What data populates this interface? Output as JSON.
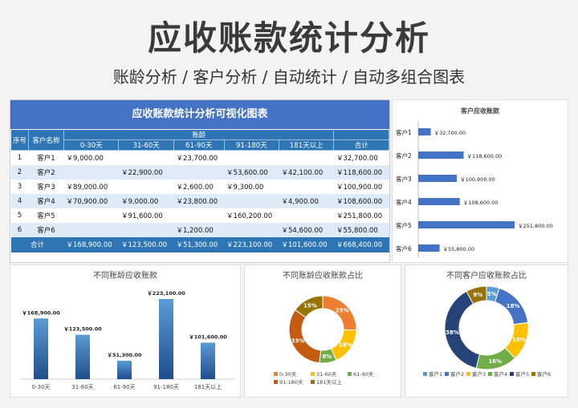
{
  "header": {
    "title": "应收账款统计分析",
    "subtitle": "账龄分析 / 客户分析 / 自动统计 / 自动多组合图表"
  },
  "table": {
    "title": "应收账款统计分析可视化图表",
    "col_seq": "序号",
    "col_customer": "客户名称",
    "group_label": "账龄",
    "age_headers": [
      "0-30天",
      "31-60天",
      "61-90天",
      "91-180天",
      "181天以上"
    ],
    "col_total": "合计",
    "rows": [
      {
        "seq": "1",
        "name": "客户1",
        "vals": [
          "￥9,000.00",
          "",
          "￥23,700.00",
          "",
          ""
        ],
        "total": "￥32,700.00"
      },
      {
        "seq": "2",
        "name": "客户2",
        "vals": [
          "",
          "￥22,900.00",
          "",
          "￥53,600.00",
          "￥42,100.00"
        ],
        "total": "￥118,600.00"
      },
      {
        "seq": "3",
        "name": "客户3",
        "vals": [
          "￥89,000.00",
          "",
          "￥2,600.00",
          "￥9,300.00",
          ""
        ],
        "total": "￥100,900.00"
      },
      {
        "seq": "4",
        "name": "客户4",
        "vals": [
          "￥70,900.00",
          "￥9,000.00",
          "￥23,800.00",
          "",
          "￥4,900.00"
        ],
        "total": "￥108,600.00"
      },
      {
        "seq": "5",
        "name": "客户5",
        "vals": [
          "",
          "￥91,600.00",
          "",
          "￥160,200.00",
          ""
        ],
        "total": "￥251,800.00"
      },
      {
        "seq": "6",
        "name": "客户6",
        "vals": [
          "",
          "",
          "￥1,200.00",
          "",
          "￥54,600.00"
        ],
        "total": "￥55,800.00"
      }
    ],
    "total_row": {
      "label": "合计",
      "vals": [
        "￥168,900.00",
        "￥123,500.00",
        "￥51,300.00",
        "￥223,100.00",
        "￥101,600.00"
      ],
      "total": "￥668,400.00"
    }
  },
  "chart_data": [
    {
      "type": "bar",
      "orientation": "horizontal",
      "title": "客户应收账款",
      "categories": [
        "客户1",
        "客户2",
        "客户3",
        "客户4",
        "客户5",
        "客户6"
      ],
      "values": [
        32700,
        118600,
        100900,
        108600,
        251800,
        55800
      ],
      "labels": [
        "￥32,700.00",
        "￥118,600.00",
        "￥100,900.00",
        "￥108,600.00",
        "￥251,800.00",
        "￥55,800.00"
      ],
      "color": "#4472c4"
    },
    {
      "type": "bar",
      "title": "不同账龄应收账款",
      "categories": [
        "0-30天",
        "31-60天",
        "61-90天",
        "91-180天",
        "181天以上"
      ],
      "values": [
        168900,
        123500,
        51300,
        223100,
        101600
      ],
      "labels": [
        "￥168,900.00",
        "￥123,500.00",
        "￥51,300.00",
        "￥223,100.00",
        "￥101,600.00"
      ],
      "color": "#2e75b6"
    },
    {
      "type": "pie",
      "donut": true,
      "title": "不同账龄应收账款占比",
      "categories": [
        "0-30天",
        "31-60天",
        "61-90天",
        "91-180天",
        "181天以上"
      ],
      "values": [
        25,
        18,
        8,
        33,
        15
      ],
      "labels": [
        "25%",
        "18%",
        "8%",
        "33%",
        "15%"
      ],
      "colors": [
        "#ed7d31",
        "#ffc000",
        "#70ad47",
        "#c55a11",
        "#997300"
      ],
      "legend": "bottom"
    },
    {
      "type": "pie",
      "donut": true,
      "title": "不同客户应收账款占比",
      "categories": [
        "客户1",
        "客户2",
        "客户3",
        "客户4",
        "客户5",
        "客户6"
      ],
      "values": [
        5,
        18,
        15,
        16,
        38,
        8
      ],
      "labels": [
        "5%",
        "18%",
        "15%",
        "16%",
        "38%",
        "8%"
      ],
      "colors": [
        "#5b9bd5",
        "#4472c4",
        "#ffc000",
        "#70ad47",
        "#264478",
        "#997300"
      ],
      "legend": "bottom"
    }
  ]
}
